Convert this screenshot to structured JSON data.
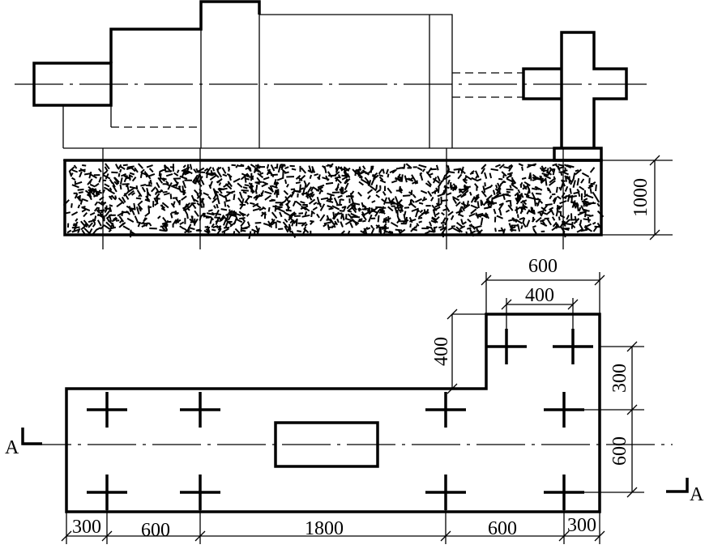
{
  "elevation": {
    "dimension_height": "1000"
  },
  "plan": {
    "section_labels": [
      "A",
      "A"
    ],
    "dimensions_top": [
      "600",
      "400"
    ],
    "dimension_left": "400",
    "dimensions_right": [
      "300",
      "600"
    ],
    "dimensions_bottom": [
      "300",
      "600",
      "1800",
      "600",
      "300"
    ]
  }
}
